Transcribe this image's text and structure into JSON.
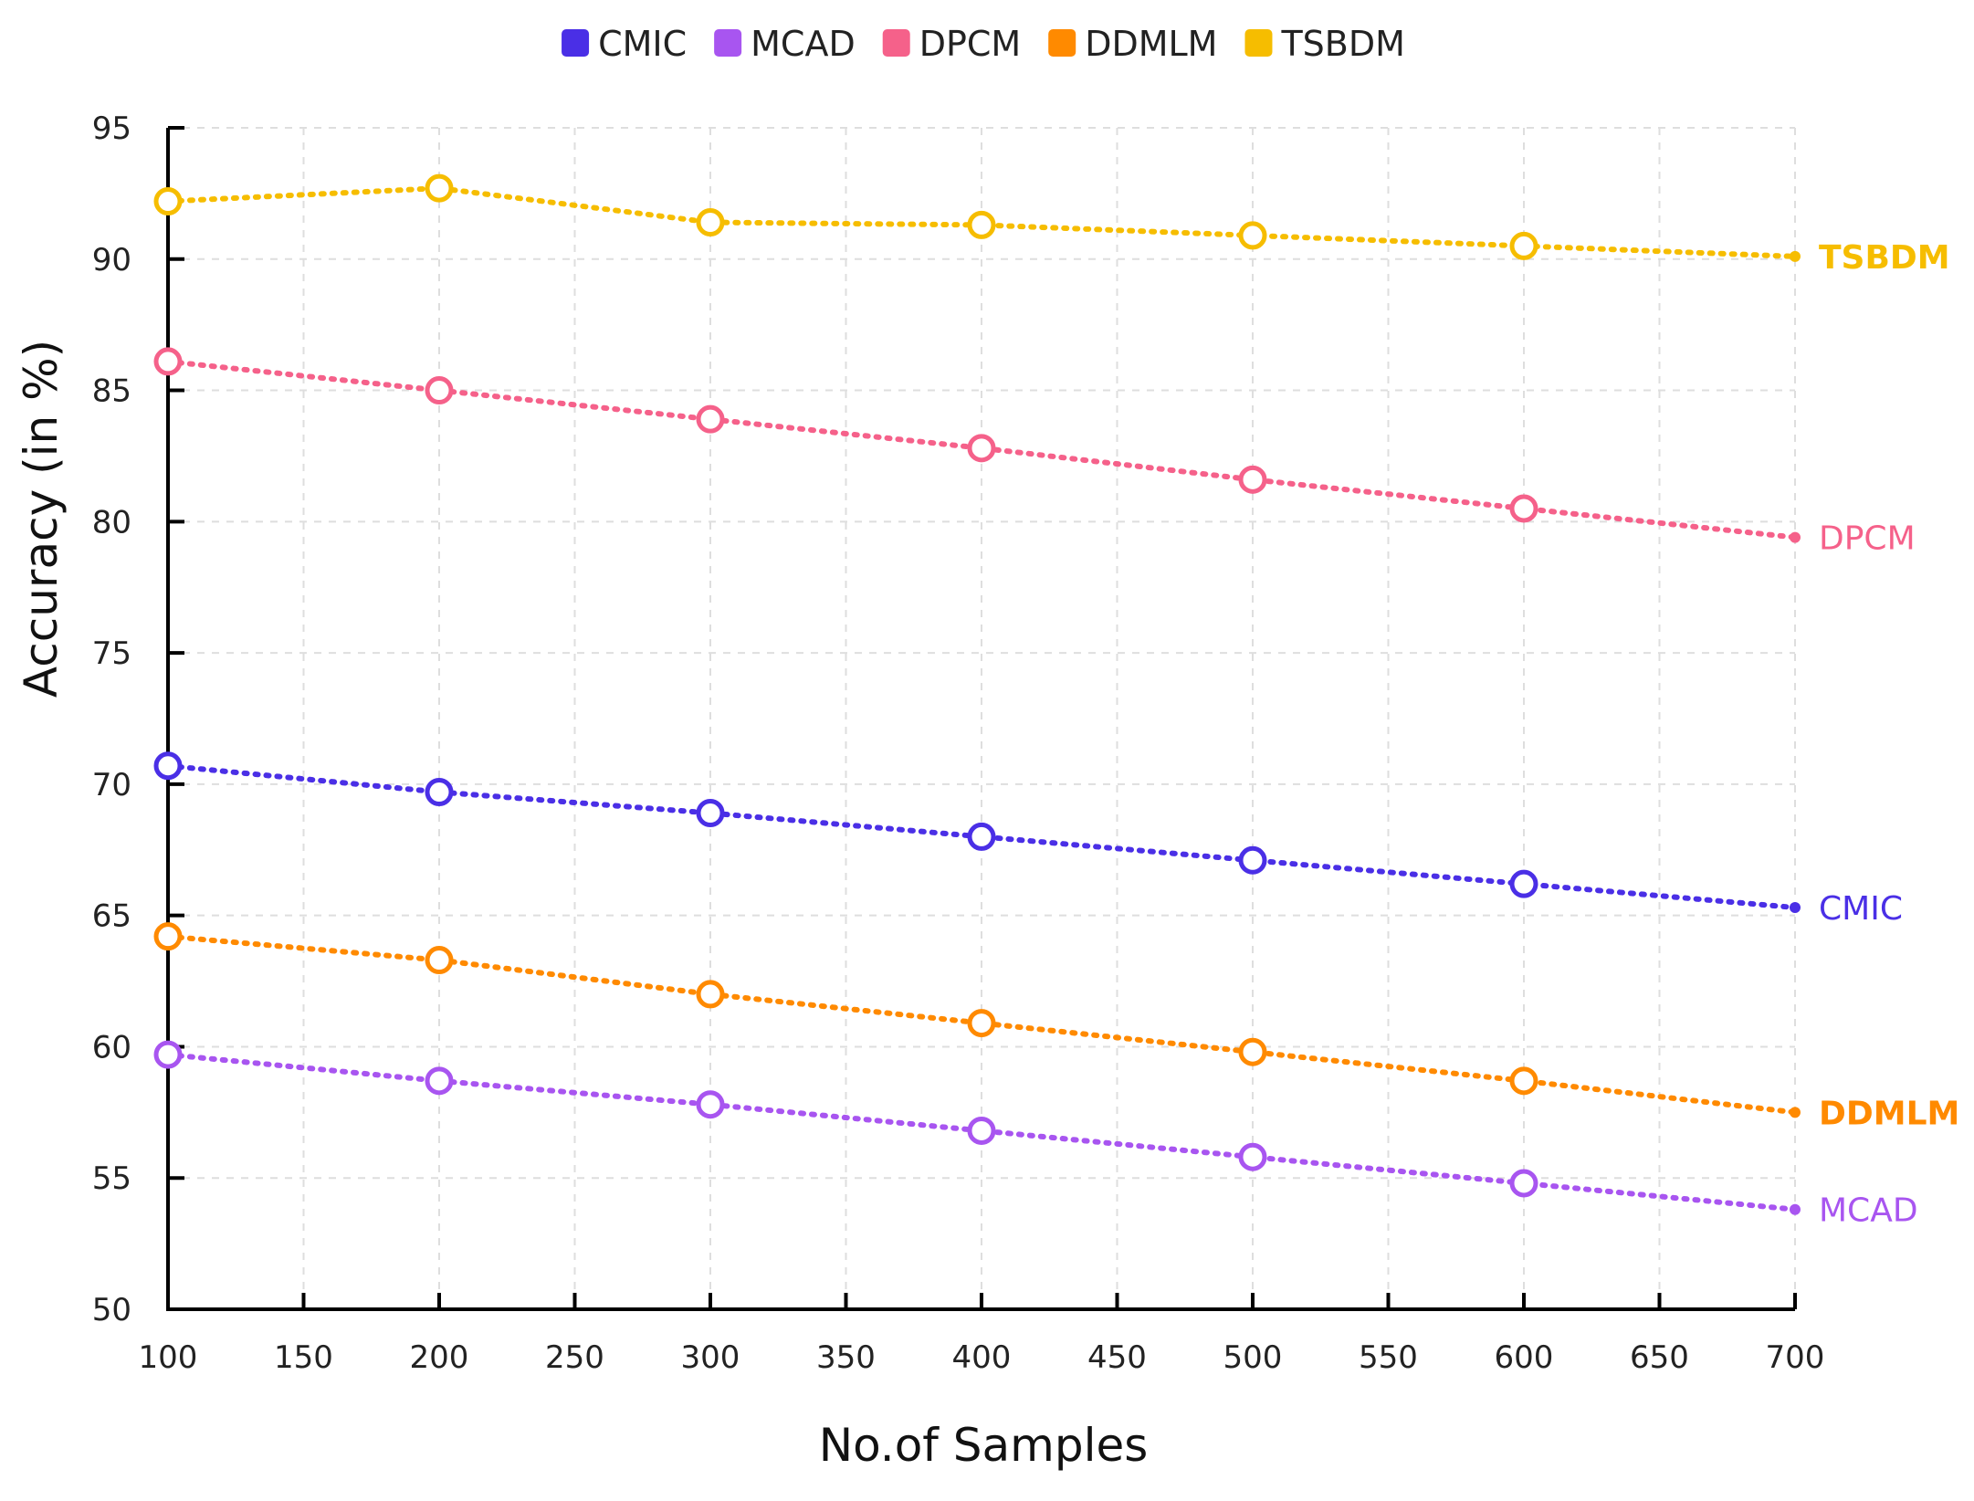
{
  "chart_data": {
    "type": "line",
    "xlabel": "No.of Samples",
    "ylabel": "Accuracy (in %)",
    "xlim": [
      100,
      700
    ],
    "ylim": [
      50,
      95
    ],
    "x_ticks": [
      100,
      150,
      200,
      250,
      300,
      350,
      400,
      450,
      500,
      550,
      600,
      650,
      700
    ],
    "y_ticks": [
      50,
      55,
      60,
      65,
      70,
      75,
      80,
      85,
      90,
      95
    ],
    "grid": true,
    "legend_position": "top-center",
    "x": [
      100,
      200,
      300,
      400,
      500,
      600,
      700
    ],
    "series": [
      {
        "name": "CMIC",
        "color": "#4a2fe6",
        "values": [
          70.7,
          69.7,
          68.9,
          68.0,
          67.1,
          66.2,
          65.3
        ]
      },
      {
        "name": "MCAD",
        "color": "#a855f0",
        "values": [
          59.7,
          58.7,
          57.8,
          56.8,
          55.8,
          54.8,
          53.8
        ]
      },
      {
        "name": "DPCM",
        "color": "#f5618a",
        "values": [
          86.1,
          85.0,
          83.9,
          82.8,
          81.6,
          80.5,
          79.4
        ]
      },
      {
        "name": "DDMLM",
        "color": "#ff8a00",
        "values": [
          64.2,
          63.3,
          62.0,
          60.9,
          59.8,
          58.7,
          57.5
        ]
      },
      {
        "name": "TSBDM",
        "color": "#f6bd00",
        "values": [
          92.2,
          92.7,
          91.4,
          91.3,
          90.9,
          90.5,
          90.1
        ]
      }
    ]
  }
}
